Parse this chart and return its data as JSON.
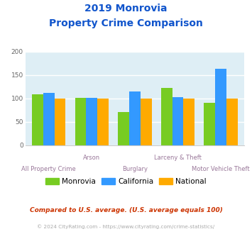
{
  "title_line1": "2019 Monrovia",
  "title_line2": "Property Crime Comparison",
  "categories": [
    "All Property Crime",
    "Arson",
    "Burglary",
    "Larceny & Theft",
    "Motor Vehicle Theft"
  ],
  "monrovia": [
    109,
    101,
    70,
    122,
    90
  ],
  "california": [
    111,
    101,
    114,
    103,
    163
  ],
  "national": [
    100,
    100,
    100,
    100,
    100
  ],
  "bar_colors": {
    "monrovia": "#77cc22",
    "california": "#3399ff",
    "national": "#ffaa00"
  },
  "ylim": [
    0,
    200
  ],
  "yticks": [
    0,
    50,
    100,
    150,
    200
  ],
  "background_color": "#deeef5",
  "grid_color": "#ffffff",
  "title_color": "#1155cc",
  "xlabel_color": "#997799",
  "legend_labels": [
    "Monrovia",
    "California",
    "National"
  ],
  "footnote1": "Compared to U.S. average. (U.S. average equals 100)",
  "footnote2": "© 2024 CityRating.com - https://www.cityrating.com/crime-statistics/",
  "footnote1_color": "#cc3300",
  "footnote2_color": "#aaaaaa"
}
